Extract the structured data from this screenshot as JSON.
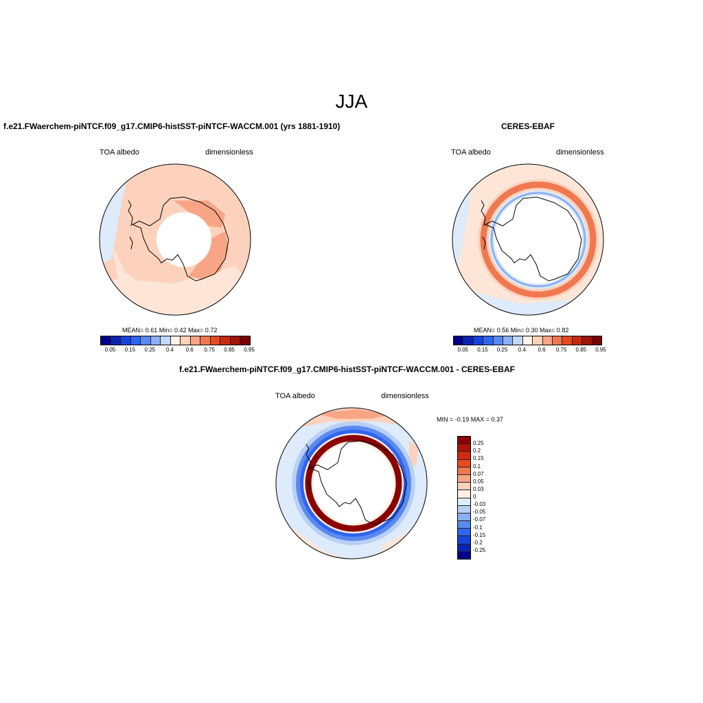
{
  "figure": {
    "season": "JJA",
    "panels": {
      "model": {
        "title": "f.e21.FWaerchem-piNTCF.f09_g17.CMIP6-histSST-piNTCF-WACCM.001 (yrs 1881-1910)",
        "variable": "TOA albedo",
        "units": "dimensionless",
        "stats": "MEAN=   0.61  Min=   0.42  Max=   0.72"
      },
      "obs": {
        "title": "CERES-EBAF",
        "variable": "TOA albedo",
        "units": "dimensionless",
        "stats": "MEAN=   0.56  Min=   0.30  Max=   0.82"
      },
      "diff": {
        "title": "f.e21.FWaerchem-piNTCF.f09_g17.CMIP6-histSST-piNTCF-WACCM.001 - CERES-EBAF",
        "variable": "TOA albedo",
        "units": "dimensionless",
        "stats": "MIN =  -0.19 MAX =   0.37"
      }
    },
    "colorbar_abs": {
      "ticks": [
        "0.05",
        "0.15",
        "0.25",
        "0.4",
        "0.6",
        "0.75",
        "0.85",
        "0.95"
      ],
      "colors": [
        "#00008b",
        "#0a24b4",
        "#1744dc",
        "#2f64f0",
        "#5a8aee",
        "#8cb0f4",
        "#c2d8fa",
        "#fdf1e6",
        "#fcd2bd",
        "#f8a585",
        "#f07850",
        "#e84a20",
        "#c82a10",
        "#a0140a",
        "#7a0000"
      ]
    },
    "colorbar_diff": {
      "ticks": [
        "0.25",
        "0.2",
        "0.15",
        "0.1",
        "0.07",
        "0.05",
        "0.03",
        "0",
        "-0.03",
        "-0.05",
        "-0.07",
        "-0.1",
        "-0.15",
        "-0.2",
        "-0.25"
      ],
      "colors": [
        "#8b0000",
        "#b01408",
        "#d02a10",
        "#e84a20",
        "#f07850",
        "#f8a585",
        "#fcd2bd",
        "#fdf1e6",
        "#ddebfb",
        "#b8d0f6",
        "#8cb0f4",
        "#5a8aee",
        "#2f64f0",
        "#1744dc",
        "#0a24b4",
        "#00008b"
      ]
    }
  }
}
